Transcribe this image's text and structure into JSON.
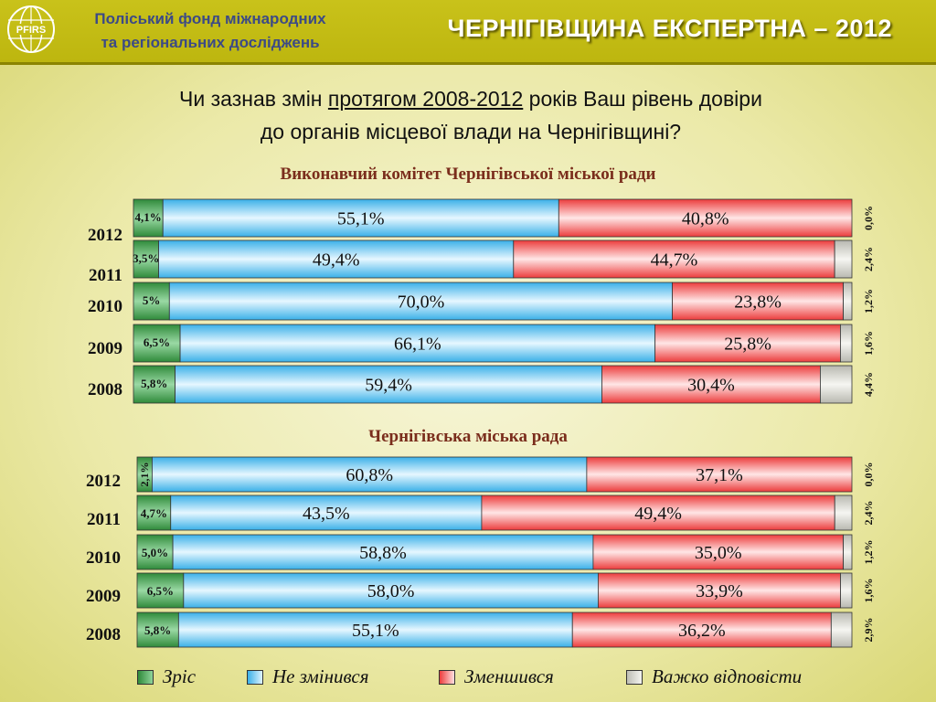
{
  "header": {
    "org_line1": "Поліський фонд міжнародних",
    "org_line2": "та регіональних досліджень",
    "logo_text": "PFIRS",
    "brand": "ЧЕРНІГІВЩИНА ЕКСПЕРТНА – 2012"
  },
  "question": {
    "part1": "Чи зазнав змін ",
    "part_underlined": "протягом 2008-2012",
    "part2": " років Ваш рівень довіри",
    "line2": "до органів  місцевої влади на Чернігівщині?"
  },
  "colors": {
    "grew": "#3f9a4a",
    "unchanged": "#5cc0ec",
    "decreased": "#ee4a4a",
    "hard": "#d0d0c8"
  },
  "legend": [
    {
      "key": "grew",
      "label": "Зріс"
    },
    {
      "key": "unchanged",
      "label": "Не змінився"
    },
    {
      "key": "decreased",
      "label": "Зменшився"
    },
    {
      "key": "hard",
      "label": "Важко відповісти"
    }
  ],
  "chart_data": [
    {
      "type": "bar",
      "stacked": true,
      "orientation": "horizontal",
      "title": "Виконавчий комітет Чернігівської міської ради",
      "categories": [
        "2012",
        "2011",
        "2010",
        "2009",
        "2008"
      ],
      "series": [
        {
          "name": "Зріс",
          "key": "grew",
          "values": [
            4.1,
            3.5,
            5,
            6.5,
            5.8
          ],
          "labels": [
            "4,1%",
            "3,5%",
            "5%",
            "6,5%",
            "5,8%"
          ]
        },
        {
          "name": "Не змінився",
          "key": "unchanged",
          "values": [
            55.1,
            49.4,
            70.0,
            66.1,
            59.4
          ],
          "labels": [
            "55,1%",
            "49,4%",
            "70,0%",
            "66,1%",
            "59,4%"
          ]
        },
        {
          "name": "Зменшився",
          "key": "decreased",
          "values": [
            40.8,
            44.7,
            23.8,
            25.8,
            30.4
          ],
          "labels": [
            "40,8%",
            "44,7%",
            "23,8%",
            "25,8%",
            "30,4%"
          ]
        },
        {
          "name": "Важко відповісти",
          "key": "hard",
          "values": [
            0.0,
            2.4,
            1.2,
            1.6,
            4.4
          ],
          "labels": [
            "0,0%",
            "2,4%",
            "1,2%",
            "1,6%",
            "4,4%"
          ]
        }
      ]
    },
    {
      "type": "bar",
      "stacked": true,
      "orientation": "horizontal",
      "title": "Чернігівська міська рада",
      "categories": [
        "2012",
        "2011",
        "2010",
        "2009",
        "2008"
      ],
      "series": [
        {
          "name": "Зріс",
          "key": "grew",
          "values": [
            2.1,
            4.7,
            5.0,
            6.5,
            5.8
          ],
          "labels": [
            "2,1%",
            "4,7%",
            "5,0%",
            "6,5%",
            "5,8%"
          ]
        },
        {
          "name": "Не змінився",
          "key": "unchanged",
          "values": [
            60.8,
            43.5,
            58.8,
            58.0,
            55.1
          ],
          "labels": [
            "60,8%",
            "43,5%",
            "58,8%",
            "58,0%",
            "55,1%"
          ]
        },
        {
          "name": "Зменшився",
          "key": "decreased",
          "values": [
            37.1,
            49.4,
            35.0,
            33.9,
            36.2
          ],
          "labels": [
            "37,1%",
            "49,4%",
            "35,0%",
            "33,9%",
            "36,2%"
          ]
        },
        {
          "name": "Важко відповісти",
          "key": "hard",
          "values": [
            0.0,
            2.4,
            1.2,
            1.6,
            2.9
          ],
          "labels": [
            "0,0%",
            "2,4%",
            "1,2%",
            "1,6%",
            "2,9%"
          ]
        }
      ]
    }
  ]
}
